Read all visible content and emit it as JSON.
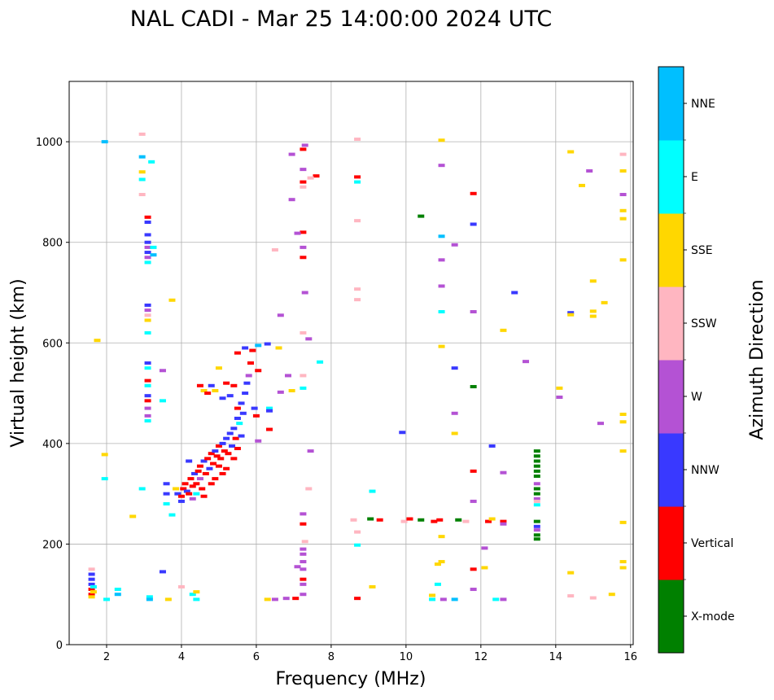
{
  "chart_data": {
    "type": "scatter",
    "title": "NAL CADI - Mar 25 14:00:00 2024 UTC",
    "xlabel": "Frequency (MHz)",
    "ylabel": "Virtual height (km)",
    "xlim": [
      1,
      16.07
    ],
    "ylim": [
      0,
      1120
    ],
    "xticks": [
      2,
      4,
      6,
      8,
      10,
      12,
      14,
      16
    ],
    "yticks": [
      0,
      200,
      400,
      600,
      800,
      1000
    ],
    "grid": true,
    "colorbar": {
      "label": "Azimuth Direction",
      "categories": [
        "X-mode",
        "Vertical",
        "NNW",
        "W",
        "SSW",
        "SSE",
        "E",
        "NNE"
      ],
      "colors": [
        "#008000",
        "#ff0000",
        "#3939ff",
        "#b452d4",
        "#ffb6c1",
        "#ffd700",
        "#00ffff",
        "#00bfff"
      ]
    },
    "points_format": "[frequency_MHz, virtual_height_km, direction_index]",
    "points": [
      [
        1.6,
        100,
        1
      ],
      [
        1.6,
        110,
        1
      ],
      [
        1.6,
        120,
        2
      ],
      [
        1.6,
        130,
        2
      ],
      [
        1.6,
        140,
        2
      ],
      [
        1.6,
        150,
        4
      ],
      [
        1.6,
        95,
        5
      ],
      [
        1.65,
        115,
        6
      ],
      [
        1.65,
        105,
        5
      ],
      [
        1.95,
        1000,
        7
      ],
      [
        1.95,
        330,
        6
      ],
      [
        1.95,
        378,
        5
      ],
      [
        1.75,
        605,
        5
      ],
      [
        2,
        90,
        6
      ],
      [
        2.3,
        110,
        6
      ],
      [
        2.3,
        100,
        7
      ],
      [
        2.7,
        255,
        5
      ],
      [
        2.95,
        310,
        6
      ],
      [
        2.95,
        1015,
        4
      ],
      [
        2.95,
        970,
        7
      ],
      [
        2.95,
        940,
        5
      ],
      [
        2.95,
        925,
        6
      ],
      [
        2.95,
        895,
        4
      ],
      [
        3.1,
        850,
        1
      ],
      [
        3.1,
        840,
        2
      ],
      [
        3.1,
        815,
        2
      ],
      [
        3.1,
        800,
        2
      ],
      [
        3.1,
        790,
        3
      ],
      [
        3.1,
        780,
        2
      ],
      [
        3.1,
        770,
        3
      ],
      [
        3.1,
        760,
        6
      ],
      [
        3.1,
        675,
        2
      ],
      [
        3.1,
        665,
        3
      ],
      [
        3.1,
        655,
        4
      ],
      [
        3.1,
        645,
        5
      ],
      [
        3.1,
        620,
        6
      ],
      [
        3.1,
        560,
        2
      ],
      [
        3.1,
        550,
        6
      ],
      [
        3.1,
        525,
        1
      ],
      [
        3.1,
        515,
        6
      ],
      [
        3.1,
        495,
        2
      ],
      [
        3.1,
        485,
        1
      ],
      [
        3.1,
        470,
        3
      ],
      [
        3.1,
        455,
        3
      ],
      [
        3.1,
        445,
        6
      ],
      [
        3.2,
        960,
        6
      ],
      [
        3.25,
        790,
        6
      ],
      [
        3.25,
        775,
        7
      ],
      [
        3.15,
        95,
        6
      ],
      [
        3.15,
        90,
        7
      ],
      [
        3.5,
        545,
        3
      ],
      [
        3.5,
        485,
        6
      ],
      [
        3.5,
        145,
        2
      ],
      [
        3.6,
        320,
        2
      ],
      [
        3.6,
        300,
        2
      ],
      [
        3.6,
        280,
        6
      ],
      [
        3.65,
        90,
        5
      ],
      [
        3.75,
        685,
        5
      ],
      [
        3.75,
        258,
        6
      ],
      [
        3.85,
        310,
        5
      ],
      [
        3.9,
        300,
        2
      ],
      [
        4.0,
        285,
        2
      ],
      [
        4.0,
        295,
        1
      ],
      [
        4.05,
        310,
        1
      ],
      [
        4.1,
        320,
        1
      ],
      [
        4.15,
        305,
        2
      ],
      [
        4.2,
        300,
        1
      ],
      [
        4.25,
        330,
        1
      ],
      [
        4.3,
        315,
        1
      ],
      [
        4.35,
        340,
        2
      ],
      [
        4.4,
        320,
        1
      ],
      [
        4.45,
        345,
        1
      ],
      [
        4.5,
        330,
        3
      ],
      [
        4.5,
        355,
        1
      ],
      [
        4.55,
        310,
        1
      ],
      [
        4.6,
        365,
        2
      ],
      [
        4.65,
        340,
        1
      ],
      [
        4.7,
        370,
        1
      ],
      [
        4.75,
        350,
        2
      ],
      [
        4.8,
        380,
        1
      ],
      [
        4.85,
        360,
        1
      ],
      [
        4.9,
        385,
        2
      ],
      [
        4.95,
        375,
        1
      ],
      [
        5.0,
        395,
        1
      ],
      [
        5.0,
        355,
        1
      ],
      [
        5.05,
        370,
        1
      ],
      [
        5.1,
        400,
        2
      ],
      [
        5.15,
        385,
        1
      ],
      [
        5.2,
        410,
        2
      ],
      [
        5.25,
        380,
        1
      ],
      [
        5.3,
        420,
        2
      ],
      [
        5.35,
        395,
        2
      ],
      [
        5.4,
        430,
        2
      ],
      [
        5.45,
        410,
        1
      ],
      [
        5.5,
        450,
        2
      ],
      [
        5.55,
        440,
        6
      ],
      [
        5.5,
        470,
        1
      ],
      [
        5.6,
        480,
        2
      ],
      [
        5.65,
        460,
        2
      ],
      [
        5.7,
        500,
        2
      ],
      [
        5.75,
        520,
        2
      ],
      [
        5.8,
        535,
        3
      ],
      [
        5.85,
        560,
        1
      ],
      [
        5.9,
        585,
        1
      ],
      [
        5.95,
        470,
        2
      ],
      [
        6.0,
        455,
        1
      ],
      [
        6.05,
        545,
        1
      ],
      [
        4.5,
        515,
        1
      ],
      [
        4.6,
        505,
        5
      ],
      [
        4.7,
        500,
        1
      ],
      [
        4.8,
        515,
        2
      ],
      [
        4.9,
        505,
        5
      ],
      [
        5.0,
        550,
        5
      ],
      [
        5.1,
        490,
        2
      ],
      [
        5.2,
        520,
        1
      ],
      [
        5.3,
        495,
        2
      ],
      [
        5.4,
        515,
        1
      ],
      [
        5.5,
        580,
        1
      ],
      [
        5.7,
        590,
        2
      ],
      [
        4.3,
        290,
        3
      ],
      [
        4.2,
        365,
        2
      ],
      [
        4.4,
        300,
        6
      ],
      [
        4.6,
        295,
        1
      ],
      [
        4.8,
        320,
        1
      ],
      [
        5.2,
        350,
        1
      ],
      [
        5.1,
        340,
        1
      ],
      [
        4.9,
        330,
        1
      ],
      [
        5.4,
        370,
        1
      ],
      [
        5.6,
        415,
        2
      ],
      [
        5.5,
        390,
        1
      ],
      [
        4,
        115,
        4
      ],
      [
        4.3,
        100,
        6
      ],
      [
        4.4,
        105,
        5
      ],
      [
        4.4,
        90,
        6
      ],
      [
        6.3,
        90,
        5
      ],
      [
        6.5,
        90,
        3
      ],
      [
        6.8,
        92,
        3
      ],
      [
        7.05,
        92,
        1
      ],
      [
        7.25,
        100,
        3
      ],
      [
        7.25,
        120,
        3
      ],
      [
        7.25,
        130,
        1
      ],
      [
        7.25,
        150,
        3
      ],
      [
        7.25,
        165,
        3
      ],
      [
        7.25,
        180,
        3
      ],
      [
        7.25,
        190,
        3
      ],
      [
        7.3,
        205,
        4
      ],
      [
        7.25,
        240,
        1
      ],
      [
        7.25,
        260,
        3
      ],
      [
        7.4,
        310,
        4
      ],
      [
        7.45,
        385,
        3
      ],
      [
        7.1,
        155,
        3
      ],
      [
        7.25,
        535,
        4
      ],
      [
        7.25,
        510,
        6
      ],
      [
        7.25,
        620,
        4
      ],
      [
        7.3,
        700,
        3
      ],
      [
        7.25,
        770,
        1
      ],
      [
        7.25,
        790,
        3
      ],
      [
        7.25,
        820,
        1
      ],
      [
        7.25,
        910,
        4
      ],
      [
        7.25,
        920,
        1
      ],
      [
        7.25,
        945,
        3
      ],
      [
        7.25,
        985,
        1
      ],
      [
        7.3,
        993,
        3
      ],
      [
        6.95,
        975,
        3
      ],
      [
        6.95,
        885,
        3
      ],
      [
        7.1,
        818,
        3
      ],
      [
        7.4,
        608,
        3
      ],
      [
        7.6,
        932,
        1
      ],
      [
        7.45,
        928,
        4
      ],
      [
        7.7,
        562,
        6
      ],
      [
        6.5,
        785,
        4
      ],
      [
        6.65,
        655,
        3
      ],
      [
        6.6,
        590,
        5
      ],
      [
        6.85,
        535,
        3
      ],
      [
        6.95,
        505,
        5
      ],
      [
        6.65,
        502,
        3
      ],
      [
        6.3,
        598,
        2
      ],
      [
        6.35,
        470,
        6
      ],
      [
        6.35,
        465,
        2
      ],
      [
        6.35,
        428,
        1
      ],
      [
        6.05,
        595,
        7
      ],
      [
        6.05,
        405,
        3
      ],
      [
        8.7,
        1005,
        4
      ],
      [
        8.7,
        930,
        1
      ],
      [
        8.7,
        920,
        6
      ],
      [
        8.7,
        843,
        4
      ],
      [
        8.7,
        707,
        4
      ],
      [
        8.7,
        686,
        4
      ],
      [
        8.6,
        248,
        4
      ],
      [
        8.7,
        224,
        4
      ],
      [
        8.7,
        198,
        6
      ],
      [
        8.7,
        92,
        1
      ],
      [
        9.05,
        250,
        0
      ],
      [
        9.1,
        305,
        6
      ],
      [
        9.1,
        115,
        5
      ],
      [
        9.3,
        248,
        1
      ],
      [
        9.9,
        422,
        2
      ],
      [
        9.95,
        245,
        4
      ],
      [
        10.1,
        250,
        1
      ],
      [
        10.4,
        852,
        0
      ],
      [
        10.4,
        248,
        0
      ],
      [
        10.75,
        245,
        1
      ],
      [
        10.9,
        248,
        1
      ],
      [
        10.95,
        1003,
        5
      ],
      [
        10.95,
        953,
        3
      ],
      [
        10.95,
        812,
        7
      ],
      [
        10.95,
        765,
        3
      ],
      [
        10.95,
        713,
        3
      ],
      [
        10.95,
        662,
        6
      ],
      [
        10.95,
        593,
        5
      ],
      [
        10.95,
        215,
        5
      ],
      [
        10.95,
        165,
        5
      ],
      [
        10.85,
        160,
        5
      ],
      [
        10.85,
        120,
        6
      ],
      [
        10.7,
        98,
        5
      ],
      [
        10.7,
        90,
        6
      ],
      [
        11,
        90,
        3
      ],
      [
        11.3,
        90,
        7
      ],
      [
        11.3,
        550,
        2
      ],
      [
        11.3,
        460,
        3
      ],
      [
        11.3,
        420,
        5
      ],
      [
        11.3,
        795,
        3
      ],
      [
        11.4,
        248,
        0
      ],
      [
        11.6,
        245,
        4
      ],
      [
        11.8,
        897,
        1
      ],
      [
        11.8,
        836,
        2
      ],
      [
        11.8,
        662,
        3
      ],
      [
        11.8,
        513,
        0
      ],
      [
        11.8,
        345,
        1
      ],
      [
        11.8,
        285,
        3
      ],
      [
        11.8,
        150,
        1
      ],
      [
        11.8,
        110,
        3
      ],
      [
        12.1,
        192,
        3
      ],
      [
        12.1,
        153,
        5
      ],
      [
        12.2,
        245,
        1
      ],
      [
        12.3,
        395,
        2
      ],
      [
        12.3,
        250,
        5
      ],
      [
        12.6,
        625,
        5
      ],
      [
        12.6,
        342,
        3
      ],
      [
        12.6,
        245,
        1
      ],
      [
        12.6,
        240,
        3
      ],
      [
        12.4,
        90,
        6
      ],
      [
        12.6,
        90,
        3
      ],
      [
        12.9,
        700,
        2
      ],
      [
        13.2,
        563,
        3
      ],
      [
        13.5,
        385,
        0
      ],
      [
        13.5,
        375,
        0
      ],
      [
        13.5,
        365,
        0
      ],
      [
        13.5,
        355,
        0
      ],
      [
        13.5,
        345,
        0
      ],
      [
        13.5,
        335,
        0
      ],
      [
        13.5,
        320,
        3
      ],
      [
        13.5,
        310,
        0
      ],
      [
        13.5,
        300,
        0
      ],
      [
        13.5,
        290,
        3
      ],
      [
        13.5,
        285,
        4
      ],
      [
        13.5,
        278,
        6
      ],
      [
        13.5,
        245,
        0
      ],
      [
        13.5,
        235,
        2
      ],
      [
        13.5,
        228,
        3
      ],
      [
        13.5,
        218,
        0
      ],
      [
        13.5,
        210,
        0
      ],
      [
        14.1,
        510,
        5
      ],
      [
        14.1,
        492,
        3
      ],
      [
        14.4,
        980,
        5
      ],
      [
        14.4,
        660,
        2
      ],
      [
        14.4,
        656,
        5
      ],
      [
        14.4,
        143,
        5
      ],
      [
        14.4,
        97,
        4
      ],
      [
        14.7,
        913,
        5
      ],
      [
        14.9,
        942,
        3
      ],
      [
        15,
        723,
        5
      ],
      [
        15,
        663,
        5
      ],
      [
        15,
        653,
        5
      ],
      [
        15,
        93,
        4
      ],
      [
        15.3,
        680,
        5
      ],
      [
        15.2,
        440,
        3
      ],
      [
        15.5,
        100,
        5
      ],
      [
        15.8,
        975,
        4
      ],
      [
        15.8,
        942,
        5
      ],
      [
        15.8,
        895,
        3
      ],
      [
        15.8,
        863,
        5
      ],
      [
        15.8,
        847,
        5
      ],
      [
        15.8,
        765,
        5
      ],
      [
        15.8,
        458,
        5
      ],
      [
        15.8,
        443,
        5
      ],
      [
        15.8,
        385,
        5
      ],
      [
        15.8,
        243,
        5
      ],
      [
        15.8,
        165,
        5
      ],
      [
        15.8,
        153,
        5
      ]
    ]
  }
}
